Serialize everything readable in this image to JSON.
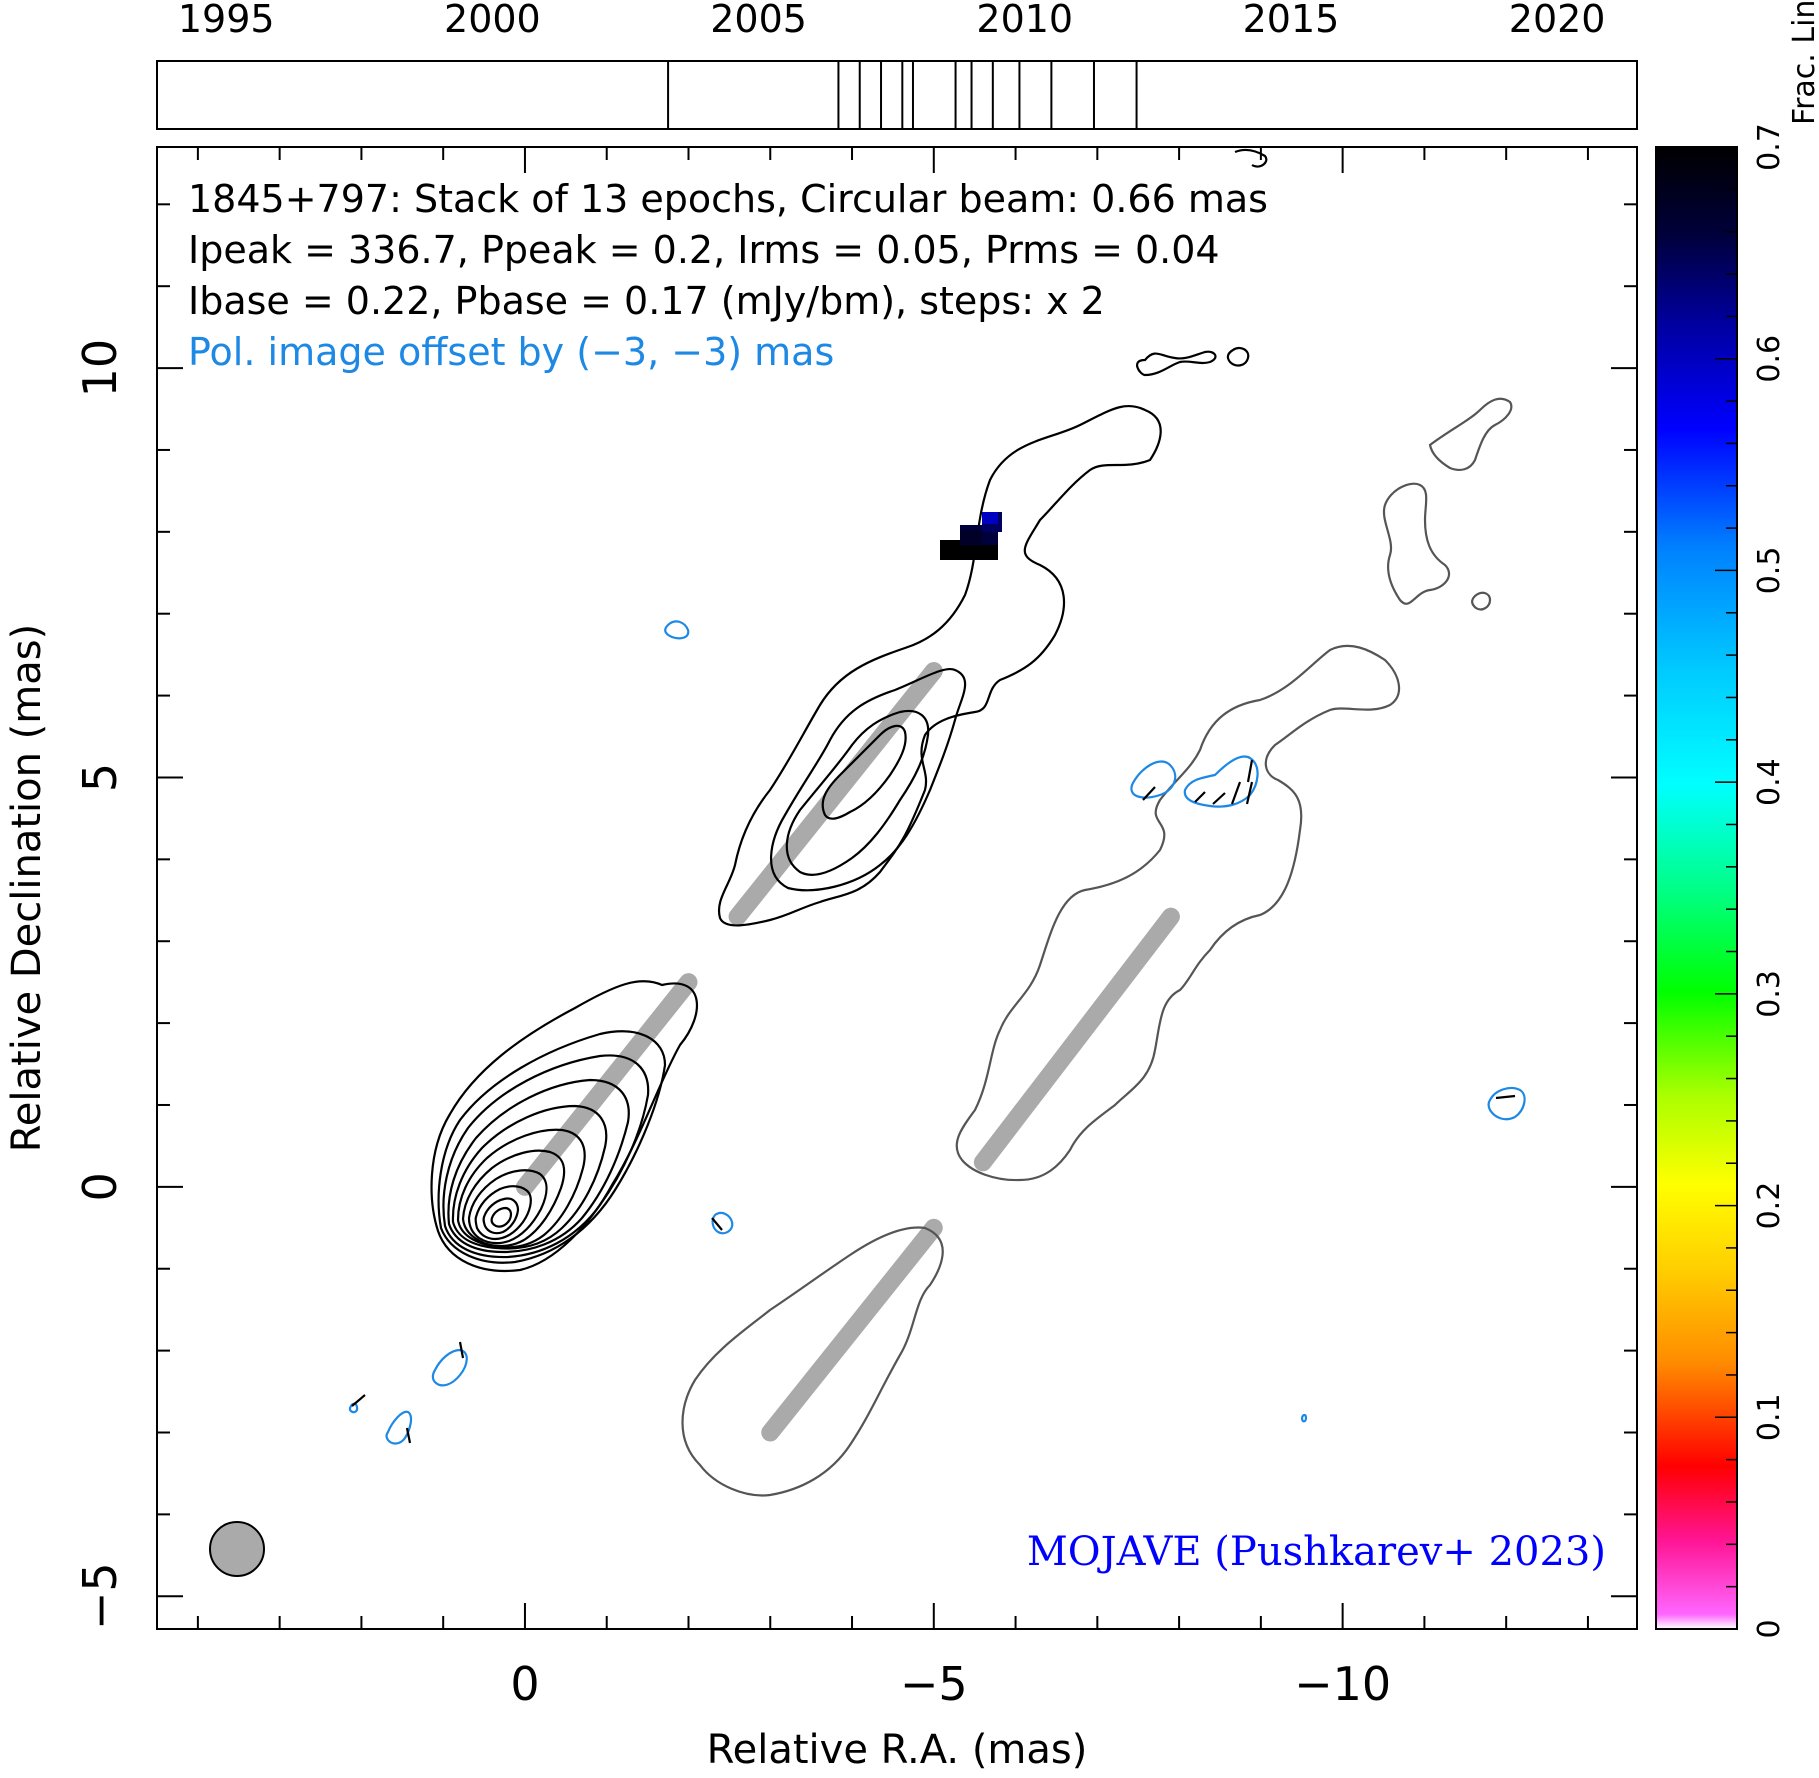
{
  "chart_data": {
    "type": "contour",
    "title_lines": [
      "1845+797: Stack of 13 epochs, Circular beam: 0.66 mas",
      "Ipeak = 336.7, Ppeak = 0.2, Irms = 0.05, Prms = 0.04",
      "Ibase = 0.22, Pbase = 0.17 (mJy/bm), steps: x 2"
    ],
    "offset_note": "Pol. image offset by (−3, −3) mas",
    "credit": "MOJAVE (Pushkarev+ 2023)",
    "xlabel": "Relative R.A. (mas)",
    "ylabel": "Relative Declination (mas)",
    "xlim": [
      4.5,
      -13.6
    ],
    "ylim": [
      -5.4,
      12.7
    ],
    "xticks": [
      {
        "value": 0,
        "label": "0"
      },
      {
        "value": -5,
        "label": "−5"
      },
      {
        "value": -10,
        "label": "−10"
      }
    ],
    "yticks": [
      {
        "value": -5,
        "label": "−5"
      },
      {
        "value": 0,
        "label": "0"
      },
      {
        "value": 5,
        "label": "5"
      },
      {
        "value": 10,
        "label": "10"
      }
    ],
    "beam": {
      "x": 3.5,
      "y": -4.4,
      "radius": 0.35
    },
    "stokes_i_ridge": [
      [
        0,
        0
      ],
      [
        -2,
        2.5
      ]
    ],
    "stokes_i_knot": [
      [
        -2.6,
        3.3
      ],
      [
        -5.0,
        6.3
      ]
    ],
    "pol_ridges": [
      [
        [
          -3,
          -3
        ],
        [
          -5,
          -0.5
        ]
      ],
      [
        [
          -5.6,
          0.3
        ],
        [
          -7.9,
          3.3
        ]
      ]
    ],
    "fractional_pol_patch": {
      "x": [
        -5.1,
        -5.8
      ],
      "y": [
        7.8,
        8.3
      ],
      "value": 0.65
    },
    "timeline": {
      "xlim": [
        1993.7,
        2021.5
      ],
      "years": [
        {
          "value": 1995,
          "label": "1995"
        },
        {
          "value": 2000,
          "label": "2000"
        },
        {
          "value": 2005,
          "label": "2005"
        },
        {
          "value": 2010,
          "label": "2010"
        },
        {
          "value": 2015,
          "label": "2015"
        },
        {
          "value": 2020,
          "label": "2020"
        }
      ],
      "epochs": [
        2003.3,
        2006.5,
        2006.9,
        2007.3,
        2007.7,
        2007.9,
        2008.7,
        2009.0,
        2009.4,
        2009.9,
        2010.5,
        2011.3,
        2012.1
      ]
    },
    "colorbar": {
      "label": "Frac. Lin. Pol.",
      "range": [
        0,
        0.7
      ],
      "ticks": [
        {
          "value": 0,
          "label": "0"
        },
        {
          "value": 0.1,
          "label": "0.1"
        },
        {
          "value": 0.2,
          "label": "0.2"
        },
        {
          "value": 0.3,
          "label": "0.3"
        },
        {
          "value": 0.4,
          "label": "0.4"
        },
        {
          "value": 0.5,
          "label": "0.5"
        },
        {
          "value": 0.6,
          "label": "0.6"
        },
        {
          "value": 0.7,
          "label": "0.7"
        }
      ]
    },
    "colors": {
      "stokes_i": "#000000",
      "pol_total": "#555555",
      "pol_blue": "#1e88e5",
      "ridge": "#aaaaaa",
      "credit": "#0000ff"
    }
  }
}
